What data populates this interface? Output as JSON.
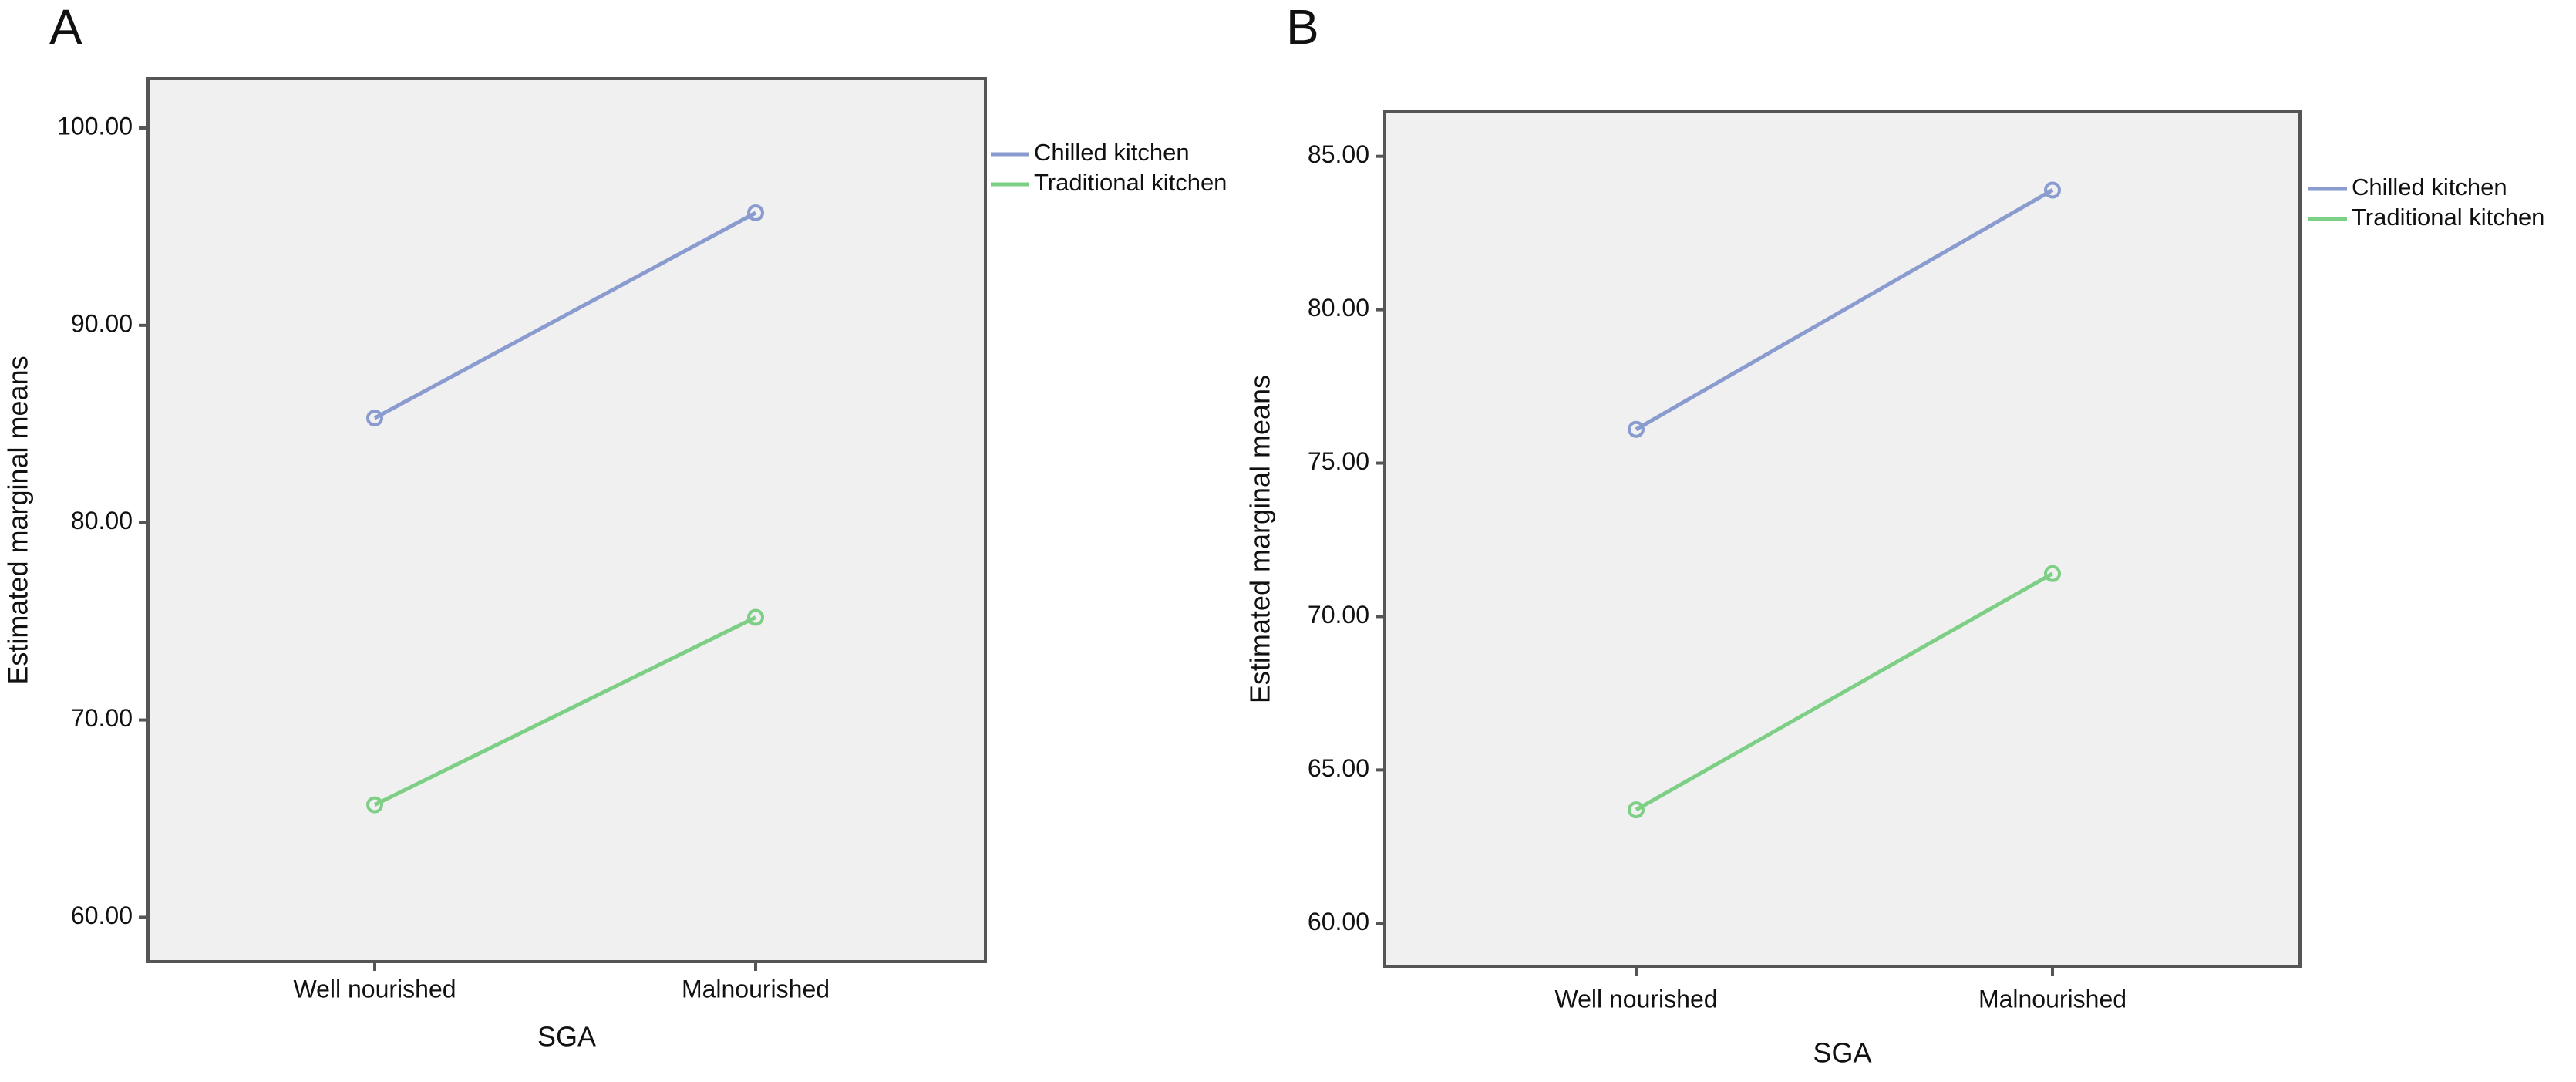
{
  "chart_data": [
    {
      "type": "line",
      "panel": "A",
      "x_label": "SGA",
      "y_label": "Estimated marginal means",
      "categories": [
        "Well nourished",
        "Malnourished"
      ],
      "series": [
        {
          "name": "Chilled kitchen",
          "color": "#8a9bd0",
          "values": [
            85.3,
            95.7
          ]
        },
        {
          "name": "Traditional kitchen",
          "color": "#7ecf86",
          "values": [
            65.7,
            75.2
          ]
        }
      ],
      "ylim": [
        57.75,
        102.5
      ],
      "yticks": [
        {
          "value": 60,
          "label": "60.00"
        },
        {
          "value": 70,
          "label": "70.00"
        },
        {
          "value": 80,
          "label": "80.00"
        },
        {
          "value": 90,
          "label": "90.00"
        },
        {
          "value": 100,
          "label": "100.00"
        }
      ]
    },
    {
      "type": "line",
      "panel": "B",
      "x_label": "SGA",
      "y_label": "Estimated marginal means",
      "categories": [
        "Well nourished",
        "Malnourished"
      ],
      "series": [
        {
          "name": "Chilled kitchen",
          "color": "#8a9bd0",
          "values": [
            76.1,
            83.9
          ]
        },
        {
          "name": "Traditional kitchen",
          "color": "#7ecf86",
          "values": [
            63.7,
            71.4
          ]
        }
      ],
      "ylim": [
        58.6,
        86.45
      ],
      "yticks": [
        {
          "value": 60,
          "label": "60.00"
        },
        {
          "value": 65,
          "label": "65.00"
        },
        {
          "value": 70,
          "label": "70.00"
        },
        {
          "value": 75,
          "label": "75.00"
        },
        {
          "value": 80,
          "label": "80.00"
        },
        {
          "value": 85,
          "label": "85.00"
        }
      ]
    }
  ]
}
